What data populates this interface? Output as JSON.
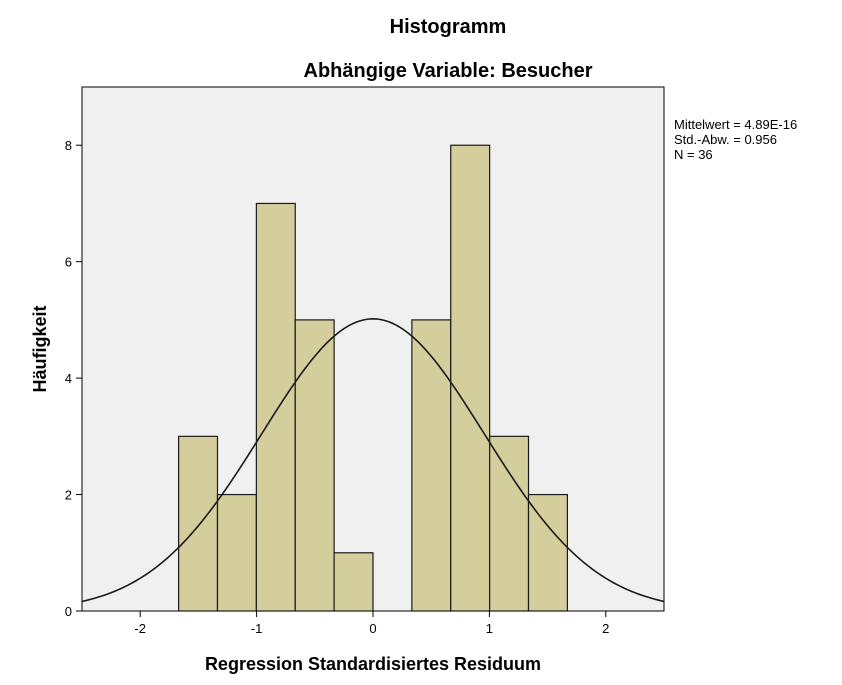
{
  "chart_data": {
    "type": "bar",
    "title": "Histogramm",
    "subtitle": "Abhängige Variable: Besucher",
    "xlabel": "Regression Standardisiertes Residuum",
    "ylabel": "Häufigkeit",
    "xlim": [
      -2.5,
      2.5
    ],
    "ylim": [
      0,
      9
    ],
    "x_ticks": [
      -2,
      -1,
      0,
      1,
      2
    ],
    "x_tick_labels": [
      "-2",
      "-1",
      "0",
      "1",
      "2"
    ],
    "y_ticks": [
      0,
      2,
      4,
      6,
      8
    ],
    "y_tick_labels": [
      "0",
      "2",
      "4",
      "6",
      "8"
    ],
    "bin_width": 0.334,
    "bins": [
      {
        "start": -1.67,
        "count": 3
      },
      {
        "start": -1.336,
        "count": 2
      },
      {
        "start": -1.002,
        "count": 7
      },
      {
        "start": -0.668,
        "count": 5
      },
      {
        "start": -0.334,
        "count": 1
      },
      {
        "start": 0.0,
        "count": 0
      },
      {
        "start": 0.334,
        "count": 5
      },
      {
        "start": 0.668,
        "count": 8
      },
      {
        "start": 1.002,
        "count": 3
      },
      {
        "start": 1.336,
        "count": 2
      }
    ],
    "normal_curve": {
      "mean": 0,
      "std": 0.956,
      "n": 36
    },
    "stats": [
      "Mittelwert = 4.89E-16",
      "Std.-Abw. = 0.956",
      "N = 36"
    ],
    "grid": false,
    "colors": {
      "bar_fill": "#d3ce9b",
      "bar_stroke": "#1a1a1a",
      "plot_background": "#f0f0f0",
      "curve": "#1a1a1a"
    }
  }
}
